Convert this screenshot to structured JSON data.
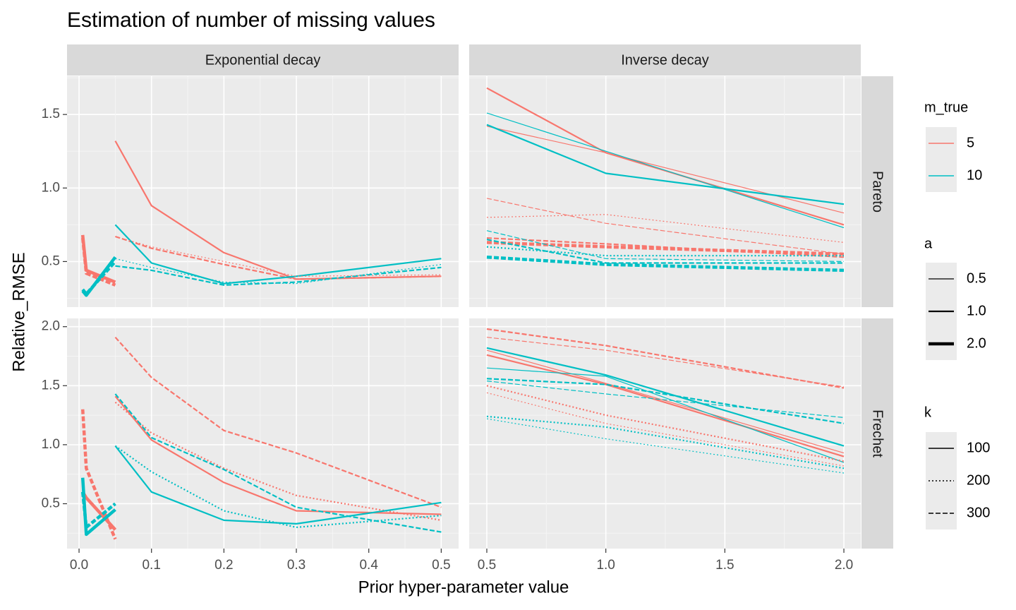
{
  "chart_data": {
    "type": "line",
    "title": "Estimation of number of missing values",
    "xlabel": "Prior hyper-parameter value",
    "ylabel": "Relative_RMSE",
    "facets": {
      "cols": [
        "Exponential decay",
        "Inverse decay"
      ],
      "rows": [
        "Pareto",
        "Frechet"
      ]
    },
    "x_axes": [
      {
        "xlim": [
          -0.0166,
          0.524
        ],
        "xticks": [
          {
            "value": 0,
            "label": "0.0"
          },
          0.1,
          0.2,
          0.3,
          0.4,
          0.5
        ]
      },
      {
        "xlim": [
          0.426,
          2.071
        ],
        "xticks": [
          0.5,
          {
            "value": 1,
            "label": "1.0"
          },
          1.5,
          {
            "value": 2,
            "label": "2.0"
          }
        ]
      }
    ],
    "y_axes": [
      {
        "ylim": [
          0.19,
          1.76
        ],
        "yticks": [
          0.5,
          {
            "value": 1,
            "label": "1.0"
          },
          1.5
        ]
      },
      {
        "ylim": [
          0.12,
          2.07
        ],
        "yticks": [
          0.5,
          {
            "value": 1,
            "label": "1.0"
          },
          1.5,
          {
            "value": 2,
            "label": "2.0"
          }
        ]
      }
    ],
    "grid": true,
    "legend": {
      "m_true": {
        "title": "m_true",
        "entries": [
          {
            "label": "5",
            "color": "#F8766D"
          },
          {
            "label": "10",
            "color": "#00BFC4"
          }
        ]
      },
      "a": {
        "title": "a",
        "entries": [
          {
            "label": "0.5",
            "width": 1.2
          },
          {
            "label": "1.0",
            "width": 2.2
          },
          {
            "label": "2.0",
            "width": 4.5
          }
        ]
      },
      "k": {
        "title": "k",
        "entries": [
          {
            "label": "100",
            "dash": "none"
          },
          {
            "label": "200",
            "dash": "2,3"
          },
          {
            "label": "300",
            "dash": "7,3"
          }
        ]
      }
    },
    "panels": [
      {
        "col": 0,
        "row": 0,
        "series": [
          {
            "m_true": 0,
            "a": 2,
            "k": 0,
            "x": [
              0.005,
              0.01,
              0.05
            ],
            "values": [
              0.68,
              0.44,
              0.36
            ]
          },
          {
            "m_true": 0,
            "a": 2,
            "k": 2,
            "x": [
              0.005,
              0.01,
              0.05
            ],
            "values": [
              0.66,
              0.42,
              0.34
            ]
          },
          {
            "m_true": 1,
            "a": 2,
            "k": 0,
            "x": [
              0.005,
              0.01,
              0.05
            ],
            "values": [
              0.3,
              0.27,
              0.53
            ]
          },
          {
            "m_true": 1,
            "a": 2,
            "k": 2,
            "x": [
              0.005,
              0.01,
              0.05
            ],
            "values": [
              0.31,
              0.28,
              0.5
            ]
          },
          {
            "m_true": 0,
            "a": 1,
            "k": 0,
            "x": [
              0.05,
              0.1,
              0.2,
              0.3,
              0.5
            ],
            "values": [
              1.32,
              0.88,
              0.56,
              0.38,
              0.4
            ]
          },
          {
            "m_true": 0,
            "a": 1,
            "k": 2,
            "x": [
              0.05,
              0.1,
              0.2,
              0.3,
              0.5
            ],
            "values": [
              0.67,
              0.59,
              0.48,
              0.38,
              0.4
            ]
          },
          {
            "m_true": 1,
            "a": 1,
            "k": 0,
            "x": [
              0.05,
              0.1,
              0.2,
              0.3,
              0.5
            ],
            "values": [
              0.75,
              0.49,
              0.35,
              0.4,
              0.52
            ]
          },
          {
            "m_true": 1,
            "a": 1,
            "k": 2,
            "x": [
              0.05,
              0.1,
              0.2,
              0.3,
              0.5
            ],
            "values": [
              0.47,
              0.44,
              0.34,
              0.36,
              0.46
            ]
          },
          {
            "m_true": 0,
            "a": 0,
            "k": 1,
            "x": [
              0.05,
              0.1,
              0.2,
              0.3,
              0.5
            ],
            "values": [
              0.67,
              0.6,
              0.5,
              0.4,
              0.41
            ]
          },
          {
            "m_true": 1,
            "a": 0,
            "k": 1,
            "x": [
              0.05,
              0.1,
              0.2,
              0.3,
              0.5
            ],
            "values": [
              0.52,
              0.46,
              0.36,
              0.35,
              0.48
            ]
          }
        ]
      },
      {
        "col": 0,
        "row": 1,
        "series": [
          {
            "m_true": 0,
            "a": 2,
            "k": 2,
            "x": [
              0.005,
              0.01,
              0.05
            ],
            "values": [
              1.3,
              0.8,
              0.2
            ]
          },
          {
            "m_true": 0,
            "a": 2,
            "k": 0,
            "x": [
              0.005,
              0.01,
              0.05
            ],
            "values": [
              0.6,
              0.55,
              0.28
            ]
          },
          {
            "m_true": 1,
            "a": 2,
            "k": 0,
            "x": [
              0.005,
              0.01,
              0.05
            ],
            "values": [
              0.72,
              0.24,
              0.45
            ]
          },
          {
            "m_true": 1,
            "a": 2,
            "k": 2,
            "x": [
              0.005,
              0.01,
              0.05
            ],
            "values": [
              0.6,
              0.3,
              0.5
            ]
          },
          {
            "m_true": 0,
            "a": 1,
            "k": 0,
            "x": [
              0.05,
              0.1,
              0.2,
              0.3,
              0.5
            ],
            "values": [
              1.41,
              1.04,
              0.68,
              0.44,
              0.41
            ]
          },
          {
            "m_true": 0,
            "a": 1,
            "k": 2,
            "x": [
              0.05,
              0.1,
              0.2,
              0.3,
              0.5
            ],
            "values": [
              1.91,
              1.57,
              1.12,
              0.93,
              0.47
            ]
          },
          {
            "m_true": 0,
            "a": 1,
            "k": 1,
            "x": [
              0.05,
              0.1,
              0.2,
              0.3,
              0.5
            ],
            "values": [
              1.36,
              1.1,
              0.8,
              0.57,
              0.36
            ]
          },
          {
            "m_true": 1,
            "a": 1,
            "k": 0,
            "x": [
              0.05,
              0.1,
              0.2,
              0.3,
              0.5
            ],
            "values": [
              0.99,
              0.6,
              0.36,
              0.33,
              0.51
            ]
          },
          {
            "m_true": 1,
            "a": 1,
            "k": 1,
            "x": [
              0.05,
              0.1,
              0.2,
              0.3,
              0.5
            ],
            "values": [
              0.99,
              0.77,
              0.44,
              0.3,
              0.4
            ]
          },
          {
            "m_true": 1,
            "a": 1,
            "k": 2,
            "x": [
              0.05,
              0.1,
              0.2,
              0.3,
              0.5
            ],
            "values": [
              1.43,
              1.06,
              0.79,
              0.47,
              0.26
            ]
          }
        ]
      },
      {
        "col": 1,
        "row": 0,
        "series": [
          {
            "m_true": 0,
            "a": 1,
            "k": 0,
            "x": [
              0.5,
              1,
              2
            ],
            "values": [
              1.68,
              1.24,
              0.75
            ]
          },
          {
            "m_true": 0,
            "a": 0,
            "k": 0,
            "x": [
              0.5,
              1,
              2
            ],
            "values": [
              1.42,
              1.24,
              0.83
            ]
          },
          {
            "m_true": 1,
            "a": 1,
            "k": 0,
            "x": [
              0.5,
              1,
              2
            ],
            "values": [
              1.43,
              1.1,
              0.89
            ]
          },
          {
            "m_true": 1,
            "a": 0,
            "k": 0,
            "x": [
              0.5,
              1,
              2
            ],
            "values": [
              1.51,
              1.25,
              0.73
            ]
          },
          {
            "m_true": 0,
            "a": 0,
            "k": 2,
            "x": [
              0.5,
              1,
              2
            ],
            "values": [
              0.93,
              0.76,
              0.55
            ]
          },
          {
            "m_true": 0,
            "a": 0,
            "k": 1,
            "x": [
              0.5,
              1,
              2
            ],
            "values": [
              0.8,
              0.82,
              0.63
            ]
          },
          {
            "m_true": 0,
            "a": 1,
            "k": 2,
            "x": [
              0.5,
              1,
              2
            ],
            "values": [
              0.66,
              0.62,
              0.53
            ]
          },
          {
            "m_true": 0,
            "a": 2,
            "k": 2,
            "x": [
              0.5,
              1,
              2
            ],
            "values": [
              0.63,
              0.6,
              0.55
            ]
          },
          {
            "m_true": 1,
            "a": 0,
            "k": 2,
            "x": [
              0.5,
              1,
              2
            ],
            "values": [
              0.71,
              0.52,
              0.5
            ]
          },
          {
            "m_true": 1,
            "a": 1,
            "k": 1,
            "x": [
              0.5,
              1,
              2
            ],
            "values": [
              0.6,
              0.54,
              0.54
            ]
          },
          {
            "m_true": 1,
            "a": 2,
            "k": 2,
            "x": [
              0.5,
              1,
              2
            ],
            "values": [
              0.53,
              0.48,
              0.44
            ]
          },
          {
            "m_true": 1,
            "a": 1,
            "k": 2,
            "x": [
              0.5,
              1,
              2
            ],
            "values": [
              0.65,
              0.49,
              0.49
            ]
          }
        ]
      },
      {
        "col": 1,
        "row": 1,
        "series": [
          {
            "m_true": 0,
            "a": 1,
            "k": 0,
            "x": [
              0.5,
              1,
              2
            ],
            "values": [
              1.76,
              1.51,
              0.9
            ]
          },
          {
            "m_true": 0,
            "a": 0,
            "k": 0,
            "x": [
              0.5,
              1,
              2
            ],
            "values": [
              1.8,
              1.52,
              0.93
            ]
          },
          {
            "m_true": 1,
            "a": 1,
            "k": 0,
            "x": [
              0.5,
              1,
              2
            ],
            "values": [
              1.82,
              1.59,
              0.99
            ]
          },
          {
            "m_true": 1,
            "a": 0,
            "k": 0,
            "x": [
              0.5,
              1,
              2
            ],
            "values": [
              1.65,
              1.58,
              0.85
            ]
          },
          {
            "m_true": 0,
            "a": 1,
            "k": 2,
            "x": [
              0.5,
              1,
              2
            ],
            "values": [
              1.98,
              1.84,
              1.48
            ]
          },
          {
            "m_true": 0,
            "a": 0,
            "k": 2,
            "x": [
              0.5,
              1,
              2
            ],
            "values": [
              1.91,
              1.8,
              1.49
            ]
          },
          {
            "m_true": 1,
            "a": 1,
            "k": 2,
            "x": [
              0.5,
              1,
              2
            ],
            "values": [
              1.56,
              1.51,
              1.18
            ]
          },
          {
            "m_true": 1,
            "a": 0,
            "k": 2,
            "x": [
              0.5,
              1,
              2
            ],
            "values": [
              1.54,
              1.43,
              1.23
            ]
          },
          {
            "m_true": 0,
            "a": 1,
            "k": 1,
            "x": [
              0.5,
              1,
              2
            ],
            "values": [
              1.5,
              1.25,
              0.86
            ]
          },
          {
            "m_true": 0,
            "a": 0,
            "k": 1,
            "x": [
              0.5,
              1,
              2
            ],
            "values": [
              1.44,
              1.18,
              0.82
            ]
          },
          {
            "m_true": 1,
            "a": 1,
            "k": 1,
            "x": [
              0.5,
              1,
              2
            ],
            "values": [
              1.24,
              1.15,
              0.8
            ]
          },
          {
            "m_true": 1,
            "a": 0,
            "k": 1,
            "x": [
              0.5,
              1,
              2
            ],
            "values": [
              1.22,
              1.05,
              0.76
            ]
          }
        ]
      }
    ]
  }
}
